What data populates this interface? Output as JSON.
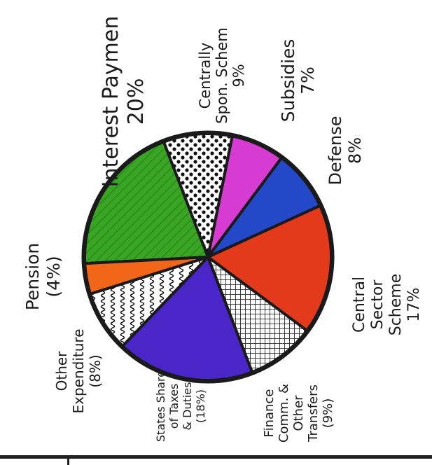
{
  "chart_data": {
    "type": "pie",
    "slices": [
      {
        "label_lines": [
          "Interest Paymen",
          "20%"
        ],
        "value": 20,
        "color": "#3aa524",
        "pattern": "hatch"
      },
      {
        "label_lines": [
          "Centrally",
          "Spon. Schem",
          "9%"
        ],
        "value": 9,
        "color": "#ffffff",
        "pattern": "dots"
      },
      {
        "label_lines": [
          "Subsidies",
          "7%"
        ],
        "value": 7,
        "color": "#d63bd2",
        "pattern": "solid"
      },
      {
        "label_lines": [
          "Defense",
          "8%"
        ],
        "value": 8,
        "color": "#2349c9",
        "pattern": "solid"
      },
      {
        "label_lines": [
          "Central",
          "Sector",
          "Scheme",
          "17%"
        ],
        "value": 17,
        "color": "#e33a1c",
        "pattern": "solid"
      },
      {
        "label_lines": [
          "Finance",
          "Comm. &",
          "Other",
          "Transfers",
          "(9%)"
        ],
        "value": 9,
        "color": "#ffffff",
        "pattern": "grid"
      },
      {
        "label_lines": [
          "States Share",
          "of Taxes",
          "& Duties",
          "(18%)"
        ],
        "value": 18,
        "color": "#4a25c8",
        "pattern": "solid"
      },
      {
        "label_lines": [
          "Other",
          "Expenditure",
          "(8%)"
        ],
        "value": 8,
        "color": "#ffffff",
        "pattern": "squiggle"
      },
      {
        "label_lines": [
          "Pension",
          "(4%)"
        ],
        "value": 4,
        "color": "#f2661a",
        "pattern": "solid"
      }
    ]
  }
}
